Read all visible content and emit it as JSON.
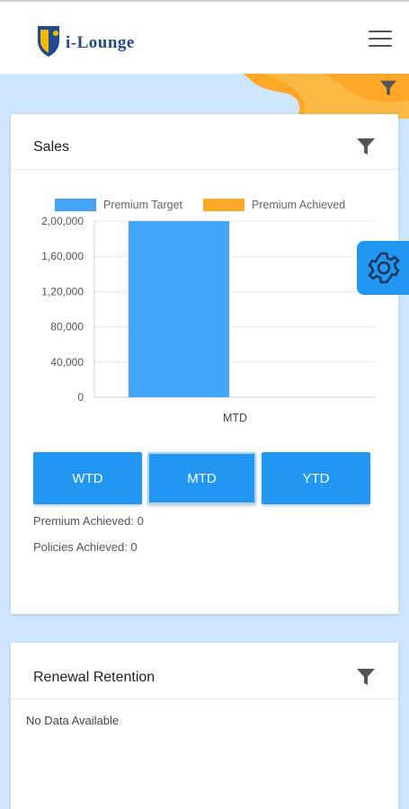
{
  "app": {
    "logo_text": "i-Lounge"
  },
  "sales": {
    "title": "Sales",
    "buttons": [
      "WTD",
      "MTD",
      "YTD"
    ],
    "active_button": "MTD",
    "premium_achieved": "Premium Achieved: 0",
    "policies_achieved": "Policies Achieved: 0"
  },
  "chart_data": {
    "type": "bar",
    "categories": [
      "MTD"
    ],
    "series": [
      {
        "name": "Premium Target",
        "values": [
          200000
        ],
        "color": "#42a5f5"
      },
      {
        "name": "Premium Achieved",
        "values": [
          0
        ],
        "color": "#ffa726"
      }
    ],
    "yticks": [
      "2,00,000",
      "1,60,000",
      "1,20,000",
      "80,000",
      "40,000",
      "0"
    ],
    "ylim": [
      0,
      200000
    ],
    "grid": true,
    "legend": "top"
  },
  "renewal": {
    "title": "Renewal Retention",
    "empty_text": "No Data Available"
  },
  "colors": {
    "primary": "#2196f3",
    "accent": "#ffa726",
    "background": "#cde6fb"
  },
  "icons": {
    "menu": "hamburger-icon",
    "filter": "filter-icon",
    "settings": "gear-icon"
  }
}
